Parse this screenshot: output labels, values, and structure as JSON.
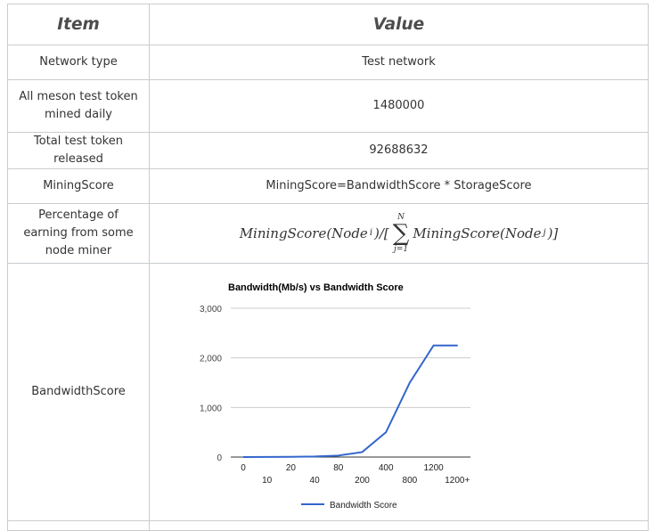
{
  "table": {
    "headers": {
      "item": "Item",
      "value": "Value"
    },
    "rows": [
      {
        "item": "Network type",
        "value": "Test network"
      },
      {
        "item": "All meson test token mined daily",
        "value": "1480000"
      },
      {
        "item": "Total test token released",
        "value": "92688632"
      },
      {
        "item": "MiningScore",
        "value": "MiningScore=BandwidthScore * StorageScore"
      },
      {
        "item": "Percentage of earning from some node miner"
      },
      {
        "item": "BandwidthScore"
      }
    ]
  },
  "formula": {
    "left": "MiningScore(Node",
    "sub_i": "i",
    "mid": ")/[",
    "sum_top": "N",
    "sum_sym": "∑",
    "sum_bottom": "j=1",
    "right": "MiningScore(Node",
    "sub_j": "j",
    "end": ")]"
  },
  "chart_data": {
    "type": "line",
    "title": "Bandwidth(Mb/s) vs Bandwidth Score",
    "categories": [
      "0",
      "10",
      "20",
      "40",
      "80",
      "200",
      "400",
      "800",
      "1200",
      "1200+"
    ],
    "series": [
      {
        "name": "Bandwidth Score",
        "values": [
          0,
          2,
          5,
          12,
          30,
          100,
          500,
          1500,
          2250,
          2250
        ],
        "color": "#3366cc"
      }
    ],
    "yticks": [
      "0",
      "1,000",
      "2,000",
      "3,000"
    ],
    "ylim": [
      0,
      3000
    ],
    "legend": "bottom",
    "grid": true
  }
}
